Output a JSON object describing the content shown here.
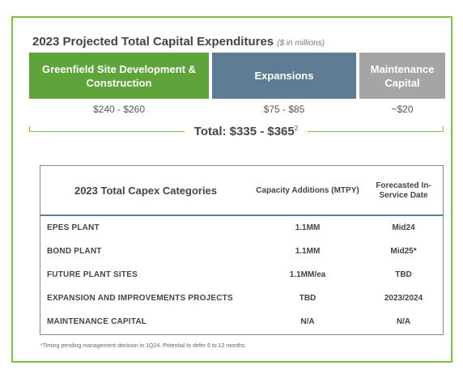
{
  "title": {
    "main": "2023 Projected Total Capital Expenditures",
    "unit": "($ in millions)"
  },
  "categories": [
    {
      "label": "Greenfield Site Development & Construction",
      "amount": "$240 - $260",
      "color": "#5ea43a"
    },
    {
      "label": "Expansions",
      "amount": "$75 - $85",
      "color": "#5e7d95"
    },
    {
      "label": "Maintenance Capital",
      "amount": "~$20",
      "color": "#a5a5a5"
    }
  ],
  "total": {
    "label": "Total: $335 - $365",
    "footnote_mark": "2"
  },
  "table": {
    "headers": {
      "category": "2023 Total Capex Categories",
      "capacity": "Capacity Additions (MTPY)",
      "date": "Forecasted In-Service Date"
    },
    "rows": [
      {
        "name": "EPES PLANT",
        "capacity": "1.1MM",
        "date": "Mid24"
      },
      {
        "name": "BOND PLANT",
        "capacity": "1.1MM",
        "date": "Mid25*"
      },
      {
        "name": "FUTURE PLANT SITES",
        "capacity": "1.1MM/ea",
        "date": "TBD"
      },
      {
        "name": "EXPANSION AND IMPROVEMENTS PROJECTS",
        "capacity": "TBD",
        "date": "2023/2024"
      },
      {
        "name": "MAINTENANCE CAPITAL",
        "capacity": "N/A",
        "date": "N/A"
      }
    ]
  },
  "footnote": "*Timing pending management decision in 1Q24. Potential to defer 6 to 12 months.",
  "colors": {
    "frame_border": "#7dc142",
    "header_rule": "#5e7d95"
  }
}
